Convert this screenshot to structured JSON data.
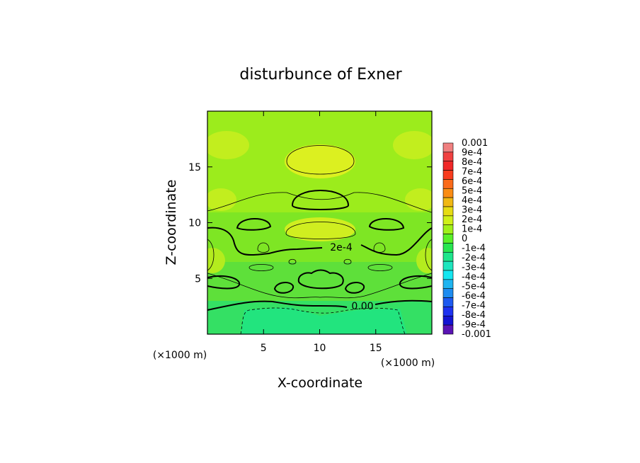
{
  "chart_data": {
    "type": "heatmap",
    "title": "disturbunce of Exner",
    "xlabel": "X-coordinate",
    "ylabel": "Z-coordinate",
    "x_unit_left": "(×1000 m)",
    "x_unit_right": "(×1000 m)",
    "xlim": [
      0,
      20
    ],
    "ylim": [
      0,
      20
    ],
    "x_ticks": [
      {
        "value": 5,
        "label": "5"
      },
      {
        "value": 10,
        "label": "10"
      },
      {
        "value": 15,
        "label": "15"
      }
    ],
    "y_ticks": [
      {
        "value": 5,
        "label": "5"
      },
      {
        "value": 10,
        "label": "10"
      },
      {
        "value": 15,
        "label": "15"
      }
    ],
    "contour_labels": [
      {
        "text": "2e-4",
        "x": 11.5,
        "y": 7.8
      },
      {
        "text": "0.00",
        "x": 13.8,
        "y": 2.6
      }
    ],
    "colorbar": {
      "labels": [
        "0.001",
        "9e-4",
        "8e-4",
        "7e-4",
        "6e-4",
        "5e-4",
        "4e-4",
        "3e-4",
        "2e-4",
        "1e-4",
        "0",
        "-1e-4",
        "-2e-4",
        "-3e-4",
        "-4e-4",
        "-5e-4",
        "-6e-4",
        "-7e-4",
        "-8e-4",
        "-9e-4",
        "-0.001"
      ],
      "colors": [
        "#f08080",
        "#f04040",
        "#f02828",
        "#f83c1e",
        "#fa6a1a",
        "#fa8c14",
        "#f0b814",
        "#e6dc14",
        "#cff01a",
        "#a0f01a",
        "#5af028",
        "#28e650",
        "#1ee68c",
        "#1ee6be",
        "#14e6f0",
        "#1eb4f0",
        "#1e8cf0",
        "#1e5af0",
        "#1e32f0",
        "#1414d2",
        "#5a14b4"
      ]
    },
    "grid": false,
    "legend_position": "right"
  }
}
